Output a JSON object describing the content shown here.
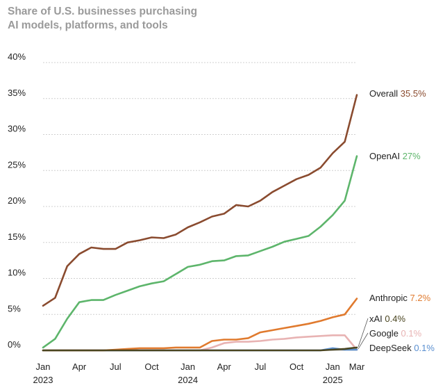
{
  "chart_data": {
    "type": "line",
    "title": "Share of U.S. businesses purchasing",
    "subtitle": "AI models, platforms, and tools",
    "xlabel": "",
    "ylabel": "",
    "ylim": [
      0,
      40
    ],
    "y_ticks": [
      "0%",
      "5%",
      "10%",
      "15%",
      "20%",
      "25%",
      "30%",
      "35%",
      "40%"
    ],
    "x_ticks": [
      {
        "month": "Jan",
        "year": "2023",
        "index": 0
      },
      {
        "month": "Apr",
        "year": "",
        "index": 3
      },
      {
        "month": "Jul",
        "year": "",
        "index": 6
      },
      {
        "month": "Oct",
        "year": "",
        "index": 9
      },
      {
        "month": "Jan",
        "year": "2024",
        "index": 12
      },
      {
        "month": "Apr",
        "year": "",
        "index": 15
      },
      {
        "month": "Jul",
        "year": "",
        "index": 18
      },
      {
        "month": "Oct",
        "year": "",
        "index": 21
      },
      {
        "month": "Jan",
        "year": "2025",
        "index": 24
      },
      {
        "month": "Mar",
        "year": "",
        "index": 26
      }
    ],
    "x": [
      "2023-01",
      "2023-02",
      "2023-03",
      "2023-04",
      "2023-05",
      "2023-06",
      "2023-07",
      "2023-08",
      "2023-09",
      "2023-10",
      "2023-11",
      "2023-12",
      "2024-01",
      "2024-02",
      "2024-03",
      "2024-04",
      "2024-05",
      "2024-06",
      "2024-07",
      "2024-08",
      "2024-09",
      "2024-10",
      "2024-11",
      "2024-12",
      "2025-01",
      "2025-02",
      "2025-03"
    ],
    "grid": "horizontal-dashed",
    "legend": "inline-right",
    "series": [
      {
        "name": "Overall",
        "value_label": "35.5%",
        "color": "#8a4b2f",
        "values": [
          6.2,
          7.3,
          11.7,
          13.4,
          14.3,
          14.1,
          14.1,
          15.0,
          15.3,
          15.7,
          15.6,
          16.1,
          17.1,
          17.8,
          18.6,
          19.0,
          20.2,
          20.0,
          20.8,
          22.0,
          22.9,
          23.8,
          24.4,
          25.4,
          27.4,
          29.0,
          35.5
        ]
      },
      {
        "name": "OpenAI",
        "value_label": "27%",
        "color": "#5db56b",
        "values": [
          0.4,
          1.6,
          4.4,
          6.7,
          7.0,
          7.0,
          7.7,
          8.3,
          8.9,
          9.3,
          9.6,
          10.6,
          11.6,
          11.9,
          12.4,
          12.5,
          13.1,
          13.2,
          13.8,
          14.4,
          15.1,
          15.5,
          15.9,
          17.2,
          18.8,
          20.8,
          27.0
        ]
      },
      {
        "name": "Anthropic",
        "value_label": "7.2%",
        "color": "#e07a2e",
        "values": [
          0,
          0,
          0,
          0,
          0,
          0,
          0.1,
          0.2,
          0.3,
          0.3,
          0.3,
          0.4,
          0.4,
          0.4,
          1.3,
          1.5,
          1.5,
          1.7,
          2.5,
          2.8,
          3.1,
          3.4,
          3.7,
          4.1,
          4.6,
          5.0,
          7.2
        ]
      },
      {
        "name": "Google",
        "value_label": "0.1%",
        "color": "#e8b3b3",
        "values": [
          0,
          0,
          0,
          0,
          0,
          0,
          0,
          0,
          0,
          0,
          0,
          0,
          0,
          0,
          0.4,
          1.0,
          1.2,
          1.2,
          1.3,
          1.5,
          1.6,
          1.8,
          1.9,
          2.0,
          2.1,
          2.1,
          0.1
        ]
      },
      {
        "name": "DeepSeek",
        "value_label": "0.1%",
        "color": "#5a8fd0",
        "values": [
          0,
          0,
          0,
          0,
          0,
          0,
          0,
          0,
          0,
          0,
          0,
          0,
          0,
          0,
          0,
          0,
          0,
          0,
          0,
          0,
          0,
          0,
          0,
          0,
          0.3,
          0.1,
          0.1
        ]
      },
      {
        "name": "xAI",
        "value_label": "0.4%",
        "color": "#4a4520",
        "values": [
          0,
          0,
          0,
          0,
          0,
          0,
          0,
          0,
          0,
          0,
          0,
          0,
          0,
          0,
          0,
          0,
          0,
          0,
          0,
          0,
          0,
          0,
          0,
          0,
          0.1,
          0.2,
          0.4
        ]
      }
    ],
    "end_labels_order": [
      "Overall",
      "OpenAI",
      "Anthropic",
      "xAI",
      "Google",
      "DeepSeek"
    ]
  }
}
